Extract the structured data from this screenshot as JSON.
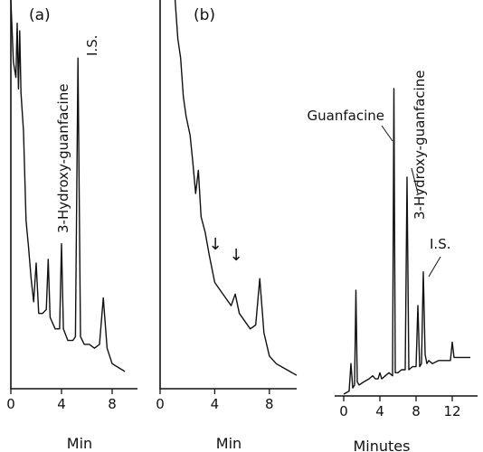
{
  "chart_data": [
    {
      "type": "line",
      "panel_label": "(a)",
      "xlabel": "Min",
      "x_ticks": [
        "0",
        "4",
        "8"
      ],
      "xlim": [
        0,
        10
      ],
      "ylim": [
        0,
        100
      ],
      "grid": false,
      "annotations": [
        {
          "text": "3-Hydroxy-guanfacine",
          "at_x": 4.0
        },
        {
          "text": "I.S.",
          "at_x": 5.3
        }
      ],
      "series": [
        {
          "x": [
            0.0,
            0.2,
            0.4,
            0.5,
            0.6,
            0.7,
            0.8,
            1.0,
            1.2,
            1.4,
            1.6,
            1.8,
            2.0,
            2.2,
            2.5,
            2.8,
            2.95,
            3.1,
            3.5,
            3.85,
            4.0,
            4.15,
            4.5,
            4.9,
            5.1,
            5.3,
            5.5,
            5.8,
            6.2,
            6.6,
            7.0,
            7.3,
            7.6,
            8.0,
            8.5,
            9.0
          ],
          "y": [
            100,
            84,
            80,
            94,
            77,
            92,
            76,
            66,
            43,
            36,
            28,
            22,
            32,
            19,
            19,
            20,
            33,
            18,
            15,
            15,
            37,
            15,
            12,
            12,
            13,
            85,
            13,
            11,
            11,
            10,
            11,
            23,
            10,
            6,
            5,
            4
          ]
        }
      ]
    },
    {
      "type": "line",
      "panel_label": "(b)",
      "xlabel": "Min",
      "x_ticks": [
        "0",
        "4",
        "8"
      ],
      "xlim": [
        0,
        10
      ],
      "ylim": [
        0,
        100
      ],
      "grid": false,
      "annotations": [
        {
          "text": "↓",
          "at_x": 4.0
        },
        {
          "text": "↓",
          "at_x": 5.6
        }
      ],
      "series": [
        {
          "x": [
            1.1,
            1.3,
            1.5,
            1.7,
            1.9,
            2.2,
            2.4,
            2.6,
            2.8,
            3.0,
            3.3,
            3.6,
            4.0,
            4.4,
            4.8,
            5.2,
            5.5,
            5.8,
            6.2,
            6.6,
            7.0,
            7.3,
            7.6,
            8.0,
            8.5,
            9.0,
            9.5,
            10.0
          ],
          "y": [
            100,
            90,
            85,
            75,
            70,
            65,
            58,
            50,
            56,
            44,
            40,
            34,
            27,
            25,
            23,
            21,
            24,
            19,
            17,
            15,
            16,
            28,
            14,
            8,
            6,
            5,
            4,
            3
          ]
        }
      ]
    },
    {
      "type": "line",
      "panel_label": "",
      "xlabel": "Minutes",
      "x_ticks": [
        "0",
        "4",
        "8",
        "12"
      ],
      "xlim": [
        0,
        14
      ],
      "ylim": [
        0,
        100
      ],
      "grid": false,
      "annotations": [
        {
          "text": "Guanfacine",
          "at_x": 5.5
        },
        {
          "text": "3-Hydroxy-guanfacine",
          "at_x": 7.0
        },
        {
          "text": "I.S.",
          "at_x": 9.2
        }
      ],
      "series": [
        {
          "x": [
            0.0,
            0.6,
            0.8,
            1.0,
            1.2,
            1.35,
            1.5,
            1.7,
            2.2,
            2.8,
            3.2,
            3.5,
            3.8,
            4.0,
            4.2,
            4.6,
            5.0,
            5.4,
            5.55,
            5.7,
            6.0,
            6.4,
            6.8,
            7.0,
            7.2,
            7.6,
            8.0,
            8.2,
            8.4,
            8.6,
            8.8,
            9.0,
            9.2,
            9.4,
            9.8,
            10.5,
            11.2,
            11.8,
            12.0,
            12.2,
            12.6,
            13.0,
            13.6,
            14.0
          ],
          "y": [
            0,
            1,
            10,
            2,
            3,
            34,
            4,
            3,
            4,
            5,
            6,
            5,
            5,
            7,
            5,
            6,
            7,
            6,
            100,
            7,
            7,
            8,
            8,
            71,
            8,
            9,
            9,
            29,
            9,
            10,
            40,
            13,
            10,
            11,
            10,
            11,
            11,
            11,
            17,
            12,
            12,
            12,
            12,
            12
          ]
        }
      ]
    }
  ]
}
